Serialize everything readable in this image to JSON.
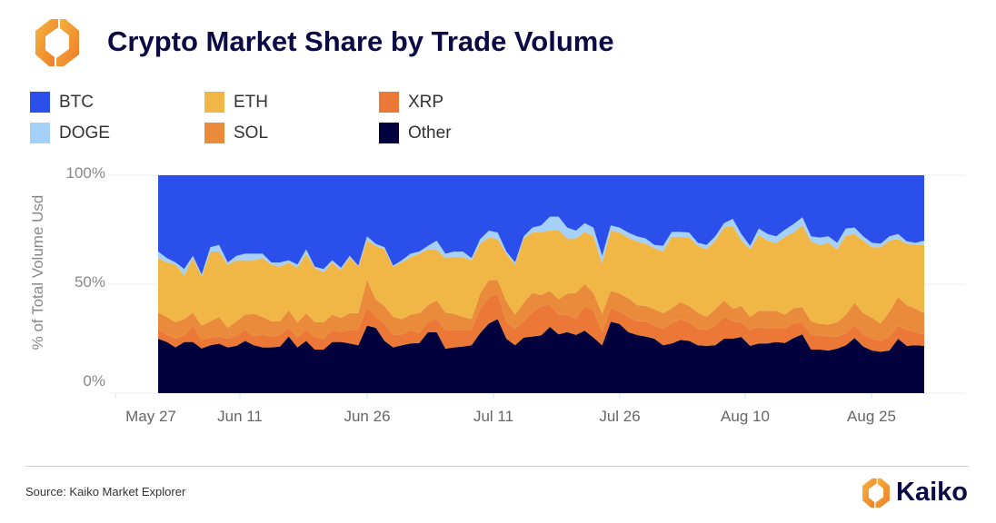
{
  "header": {
    "title": "Crypto Market Share by Trade Volume"
  },
  "brand": {
    "name": "Kaiko"
  },
  "footer": {
    "source": "Source: Kaiko Market Explorer"
  },
  "colors": {
    "BTC": "#2a4fea",
    "DOGE": "#a5d0f8",
    "ETH": "#f0b646",
    "SOL": "#e98b3a",
    "XRP": "#eb7836",
    "Other": "#02003d",
    "title": "#0b0a45"
  },
  "chart_data": {
    "type": "area",
    "stacked": true,
    "normalized": true,
    "title": "Crypto Market Share by Trade Volume",
    "xlabel": "",
    "ylabel": "% of Total Volume Usd",
    "ylim": [
      0,
      100
    ],
    "yticks": [
      "0%",
      "50%",
      "100%"
    ],
    "xticks": [
      "May 27",
      "Jun 11",
      "Jun 26",
      "Jul 11",
      "Jul 26",
      "Aug 10",
      "Aug 25"
    ],
    "legend": {
      "placement": "top-left",
      "entries": [
        "BTC",
        "ETH",
        "XRP",
        "DOGE",
        "SOL",
        "Other"
      ]
    },
    "grid": true,
    "series": [
      {
        "name": "Other",
        "values": [
          25,
          23.5,
          21,
          23.5,
          23.5,
          20.5,
          22,
          22.7,
          21,
          21.7,
          24,
          22,
          21,
          21,
          21.4,
          26,
          21,
          24,
          20,
          20,
          23.5,
          23.5,
          22.8,
          22,
          31,
          30,
          24,
          21,
          22,
          22.8,
          23,
          28,
          28,
          20.4,
          21,
          21.4,
          22,
          27.6,
          32,
          34,
          25,
          22,
          25.5,
          26,
          26.5,
          30.4,
          27,
          28,
          26.7,
          28.7,
          25.5,
          22,
          32.8,
          31.8,
          28,
          26.7,
          26,
          25,
          22,
          22.8,
          24.4,
          24,
          22,
          21.7,
          22,
          25,
          25,
          25.8,
          21.7,
          22.8,
          22.8,
          23.5,
          23,
          25.3,
          27,
          20,
          20,
          19.6,
          20.4,
          22,
          25.3,
          21.4,
          19.6,
          19,
          19.6,
          25,
          21.7,
          22,
          21.7
        ]
      },
      {
        "name": "XRP",
        "values": [
          4,
          3.5,
          4,
          3,
          7.5,
          4,
          3.5,
          3.3,
          4,
          4.8,
          5,
          4,
          6,
          5,
          5.1,
          4,
          4.5,
          5,
          6,
          5,
          5.5,
          4.5,
          6.2,
          7,
          8.5,
          5,
          8,
          6,
          5,
          6.2,
          4.6,
          4.5,
          6,
          8.6,
          8,
          7.6,
          7,
          11.1,
          12,
          11.7,
          7.5,
          7.6,
          7.5,
          11,
          13.5,
          10.1,
          9,
          8,
          7.3,
          11.3,
          12.5,
          6,
          6.2,
          5.8,
          7,
          6.3,
          7,
          6,
          7.6,
          9.2,
          9.6,
          8.5,
          7.6,
          7.3,
          9,
          10,
          8,
          6.7,
          7.3,
          7.6,
          6.8,
          6.1,
          6.6,
          6.7,
          5.5,
          7,
          6.5,
          6.4,
          5.6,
          5.4,
          5.7,
          5.6,
          5.4,
          5,
          6.4,
          6,
          7.3,
          6,
          5.3
        ]
      },
      {
        "name": "SOL",
        "values": [
          8,
          8,
          7.5,
          7.5,
          6,
          6.5,
          7.5,
          9,
          5,
          6.5,
          7,
          10.4,
          8,
          7,
          6.5,
          8,
          7,
          7.7,
          6.5,
          7.5,
          7,
          6.6,
          7.7,
          7.7,
          12.5,
          8,
          8,
          8,
          7,
          7,
          9.1,
          7.9,
          8.6,
          8,
          7.4,
          6,
          5,
          7,
          8,
          6.3,
          9.5,
          6.4,
          8.5,
          9,
          5,
          6.5,
          7,
          9.7,
          12,
          10,
          8,
          8.4,
          8,
          8.1,
          8.6,
          7.4,
          7,
          7.5,
          7.1,
          7,
          7.8,
          7.5,
          7.4,
          6,
          7.5,
          7.6,
          5.7,
          7.5,
          6,
          7.4,
          8.2,
          8.2,
          6.4,
          7,
          6.9,
          6,
          5.3,
          5.5,
          6.5,
          8.6,
          10.5,
          9.7,
          9.6,
          8,
          11.4,
          13,
          11.4,
          10.7,
          9.7
        ]
      },
      {
        "name": "ETH",
        "values": [
          25,
          25,
          26.5,
          20,
          25,
          22.5,
          32,
          30,
          29,
          28,
          25,
          24.6,
          27,
          26,
          25,
          22,
          25,
          27.3,
          25,
          22.9,
          24,
          21.9,
          25.7,
          21.3,
          18,
          24.6,
          26,
          23,
          26,
          26.4,
          27.3,
          25.6,
          23.4,
          25,
          26.2,
          27.4,
          27,
          22.9,
          19.4,
          18.7,
          22,
          23,
          29.5,
          27.7,
          29,
          27.6,
          32,
          25.3,
          25,
          24,
          26,
          23.2,
          27.6,
          28,
          27.8,
          29.2,
          28.6,
          28,
          28.3,
          32.8,
          30,
          31.4,
          30.6,
          31,
          31.5,
          33.4,
          38.1,
          30,
          31,
          34.8,
          32.2,
          31,
          35.8,
          34.7,
          37.6,
          36.6,
          36.2,
          37.5,
          33.5,
          36.4,
          31.5,
          33.3,
          32.4,
          35,
          32.6,
          26.7,
          28.2,
          29.3,
          31.3
        ]
      },
      {
        "name": "DOGE",
        "values": [
          3,
          2,
          1,
          3,
          1,
          1,
          2,
          3,
          1,
          2,
          3,
          3,
          2,
          1,
          2,
          1,
          1.5,
          2,
          0.5,
          1.6,
          1,
          1,
          0.6,
          0.5,
          2,
          0.9,
          1,
          0.5,
          1,
          1.6,
          1,
          1.6,
          4,
          2,
          2.4,
          2.6,
          1,
          2.1,
          3.2,
          3,
          1,
          1,
          1,
          2.3,
          3,
          6.4,
          6,
          5,
          3.6,
          4,
          4,
          3.4,
          2.4,
          2.3,
          2.3,
          2.4,
          2.4,
          1.5,
          2.6,
          2.2,
          2.2,
          2.3,
          1.4,
          2,
          2,
          2,
          3.2,
          3,
          1.6,
          3,
          3,
          3.2,
          3.2,
          3.9,
          3.7,
          2.4,
          3.4,
          3,
          3,
          3.2,
          3,
          2,
          2,
          1.6,
          2,
          2.3,
          1.1,
          1,
          2
        ]
      },
      {
        "name": "BTC",
        "values": [
          35,
          38,
          40,
          43,
          37,
          45.5,
          33,
          32,
          40,
          37,
          36,
          36,
          36,
          40,
          40,
          39,
          41,
          34,
          42,
          43,
          39,
          42.5,
          37,
          41.5,
          28,
          31.5,
          33,
          41.5,
          39,
          36,
          35,
          32.4,
          30,
          36,
          35,
          35,
          38,
          29.3,
          25.4,
          26.3,
          35,
          40,
          28,
          24,
          23,
          19,
          19,
          24,
          25.4,
          22,
          24,
          37,
          23,
          24,
          26.3,
          28,
          29,
          32,
          32.4,
          26,
          26,
          26.3,
          31,
          32,
          28,
          22,
          20,
          27,
          32.4,
          24.4,
          27,
          28,
          25,
          22.4,
          19.3,
          28,
          28.6,
          28,
          31,
          24.4,
          24,
          28,
          31,
          31.4,
          28,
          27,
          30.3,
          31,
          30
        ]
      }
    ]
  }
}
